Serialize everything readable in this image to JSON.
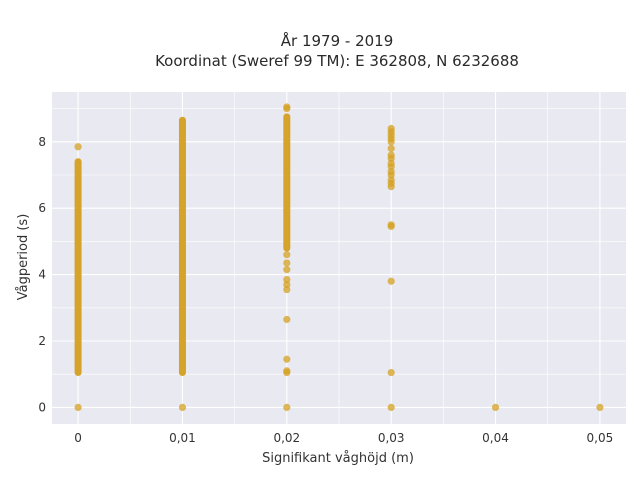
{
  "chart_data": {
    "type": "scatter",
    "title_lines": [
      "År 1979 - 2019",
      "Koordinat (Sweref 99 TM): E 362808, N 6232688"
    ],
    "xlabel": "Signifikant våghöjd (m)",
    "ylabel": "Vågperiod (s)",
    "xlim": [
      -0.0025,
      0.0525
    ],
    "ylim": [
      -0.5,
      9.5
    ],
    "x_ticks": [
      0,
      0.01,
      0.02,
      0.03,
      0.04,
      0.05
    ],
    "x_tick_labels": [
      "0",
      "0,01",
      "0,02",
      "0,03",
      "0,04",
      "0,05"
    ],
    "y_ticks": [
      0,
      2,
      4,
      6,
      8
    ],
    "y_tick_labels": [
      "0",
      "2",
      "4",
      "6",
      "8"
    ],
    "grid": true,
    "marker_color": "#D4A020",
    "background_color": "#E9E9F1",
    "grid_color": "#FFFFFF",
    "points": [
      {
        "x": 0,
        "y": 0
      },
      {
        "x": 0,
        "y": 7.85
      },
      {
        "x": 0.01,
        "y": 0
      },
      {
        "x": 0.02,
        "y": 0
      },
      {
        "x": 0.02,
        "y": 1.05
      },
      {
        "x": 0.02,
        "y": 1.1
      },
      {
        "x": 0.02,
        "y": 1.45
      },
      {
        "x": 0.02,
        "y": 2.65
      },
      {
        "x": 0.02,
        "y": 3.55
      },
      {
        "x": 0.02,
        "y": 3.7
      },
      {
        "x": 0.02,
        "y": 3.85
      },
      {
        "x": 0.02,
        "y": 4.15
      },
      {
        "x": 0.02,
        "y": 4.35
      },
      {
        "x": 0.02,
        "y": 4.6
      },
      {
        "x": 0.02,
        "y": 9.0
      },
      {
        "x": 0.02,
        "y": 9.05
      },
      {
        "x": 0.03,
        "y": 0
      },
      {
        "x": 0.03,
        "y": 1.05
      },
      {
        "x": 0.03,
        "y": 3.8
      },
      {
        "x": 0.03,
        "y": 5.45
      },
      {
        "x": 0.03,
        "y": 5.5
      },
      {
        "x": 0.03,
        "y": 6.65
      },
      {
        "x": 0.03,
        "y": 6.75
      },
      {
        "x": 0.03,
        "y": 6.85
      },
      {
        "x": 0.03,
        "y": 7.0
      },
      {
        "x": 0.03,
        "y": 7.1
      },
      {
        "x": 0.03,
        "y": 7.25
      },
      {
        "x": 0.03,
        "y": 7.35
      },
      {
        "x": 0.03,
        "y": 7.5
      },
      {
        "x": 0.03,
        "y": 7.6
      },
      {
        "x": 0.03,
        "y": 7.8
      },
      {
        "x": 0.03,
        "y": 8.0
      },
      {
        "x": 0.03,
        "y": 8.1
      },
      {
        "x": 0.03,
        "y": 8.2
      },
      {
        "x": 0.03,
        "y": 8.3
      },
      {
        "x": 0.03,
        "y": 8.4
      },
      {
        "x": 0.04,
        "y": 0
      },
      {
        "x": 0.05,
        "y": 0
      }
    ],
    "dense_ranges": [
      {
        "x": 0,
        "y_from": 1.05,
        "y_to": 7.4
      },
      {
        "x": 0.01,
        "y_from": 1.05,
        "y_to": 8.65
      },
      {
        "x": 0.02,
        "y_from": 4.8,
        "y_to": 8.75
      }
    ]
  }
}
